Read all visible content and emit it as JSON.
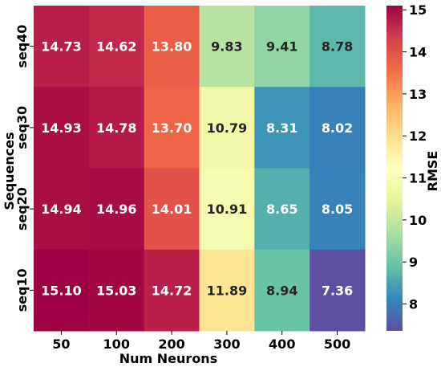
{
  "chart_data": {
    "type": "heatmap",
    "title": "",
    "xlabel": "Num Neurons",
    "ylabel": "Sequences",
    "x_categories": [
      "50",
      "100",
      "200",
      "300",
      "400",
      "500"
    ],
    "y_categories": [
      "seq40",
      "seq30",
      "seq20",
      "seq10"
    ],
    "values": [
      [
        14.73,
        14.62,
        13.8,
        9.83,
        9.41,
        8.78
      ],
      [
        14.93,
        14.78,
        13.7,
        10.79,
        8.31,
        8.02
      ],
      [
        14.94,
        14.96,
        14.01,
        10.91,
        8.65,
        8.05
      ],
      [
        15.1,
        15.03,
        14.72,
        11.89,
        8.94,
        7.36
      ]
    ],
    "value_labels": [
      [
        "14.73",
        "14.62",
        "13.80",
        "9.83",
        "9.41",
        "8.78"
      ],
      [
        "14.93",
        "14.78",
        "13.70",
        "10.79",
        "8.31",
        "8.02"
      ],
      [
        "14.94",
        "14.96",
        "14.01",
        "10.91",
        "8.65",
        "8.05"
      ],
      [
        "15.10",
        "15.03",
        "14.72",
        "11.89",
        "8.94",
        "7.36"
      ]
    ],
    "colorbar": {
      "label": "RMSE",
      "range": [
        7.36,
        15.1
      ],
      "ticks": [
        "8",
        "9",
        "10",
        "11",
        "12",
        "13",
        "14",
        "15"
      ],
      "colormap": "Spectral_r"
    },
    "colormap_stops": [
      "#5e4fa2",
      "#3288bd",
      "#66c2a5",
      "#abdda4",
      "#e6f598",
      "#ffffbf",
      "#fee08b",
      "#fdae61",
      "#f46d43",
      "#d53e4f",
      "#9e0142"
    ],
    "annotation_colors": {
      "light": "#ffffff",
      "dark": "#262626"
    }
  }
}
